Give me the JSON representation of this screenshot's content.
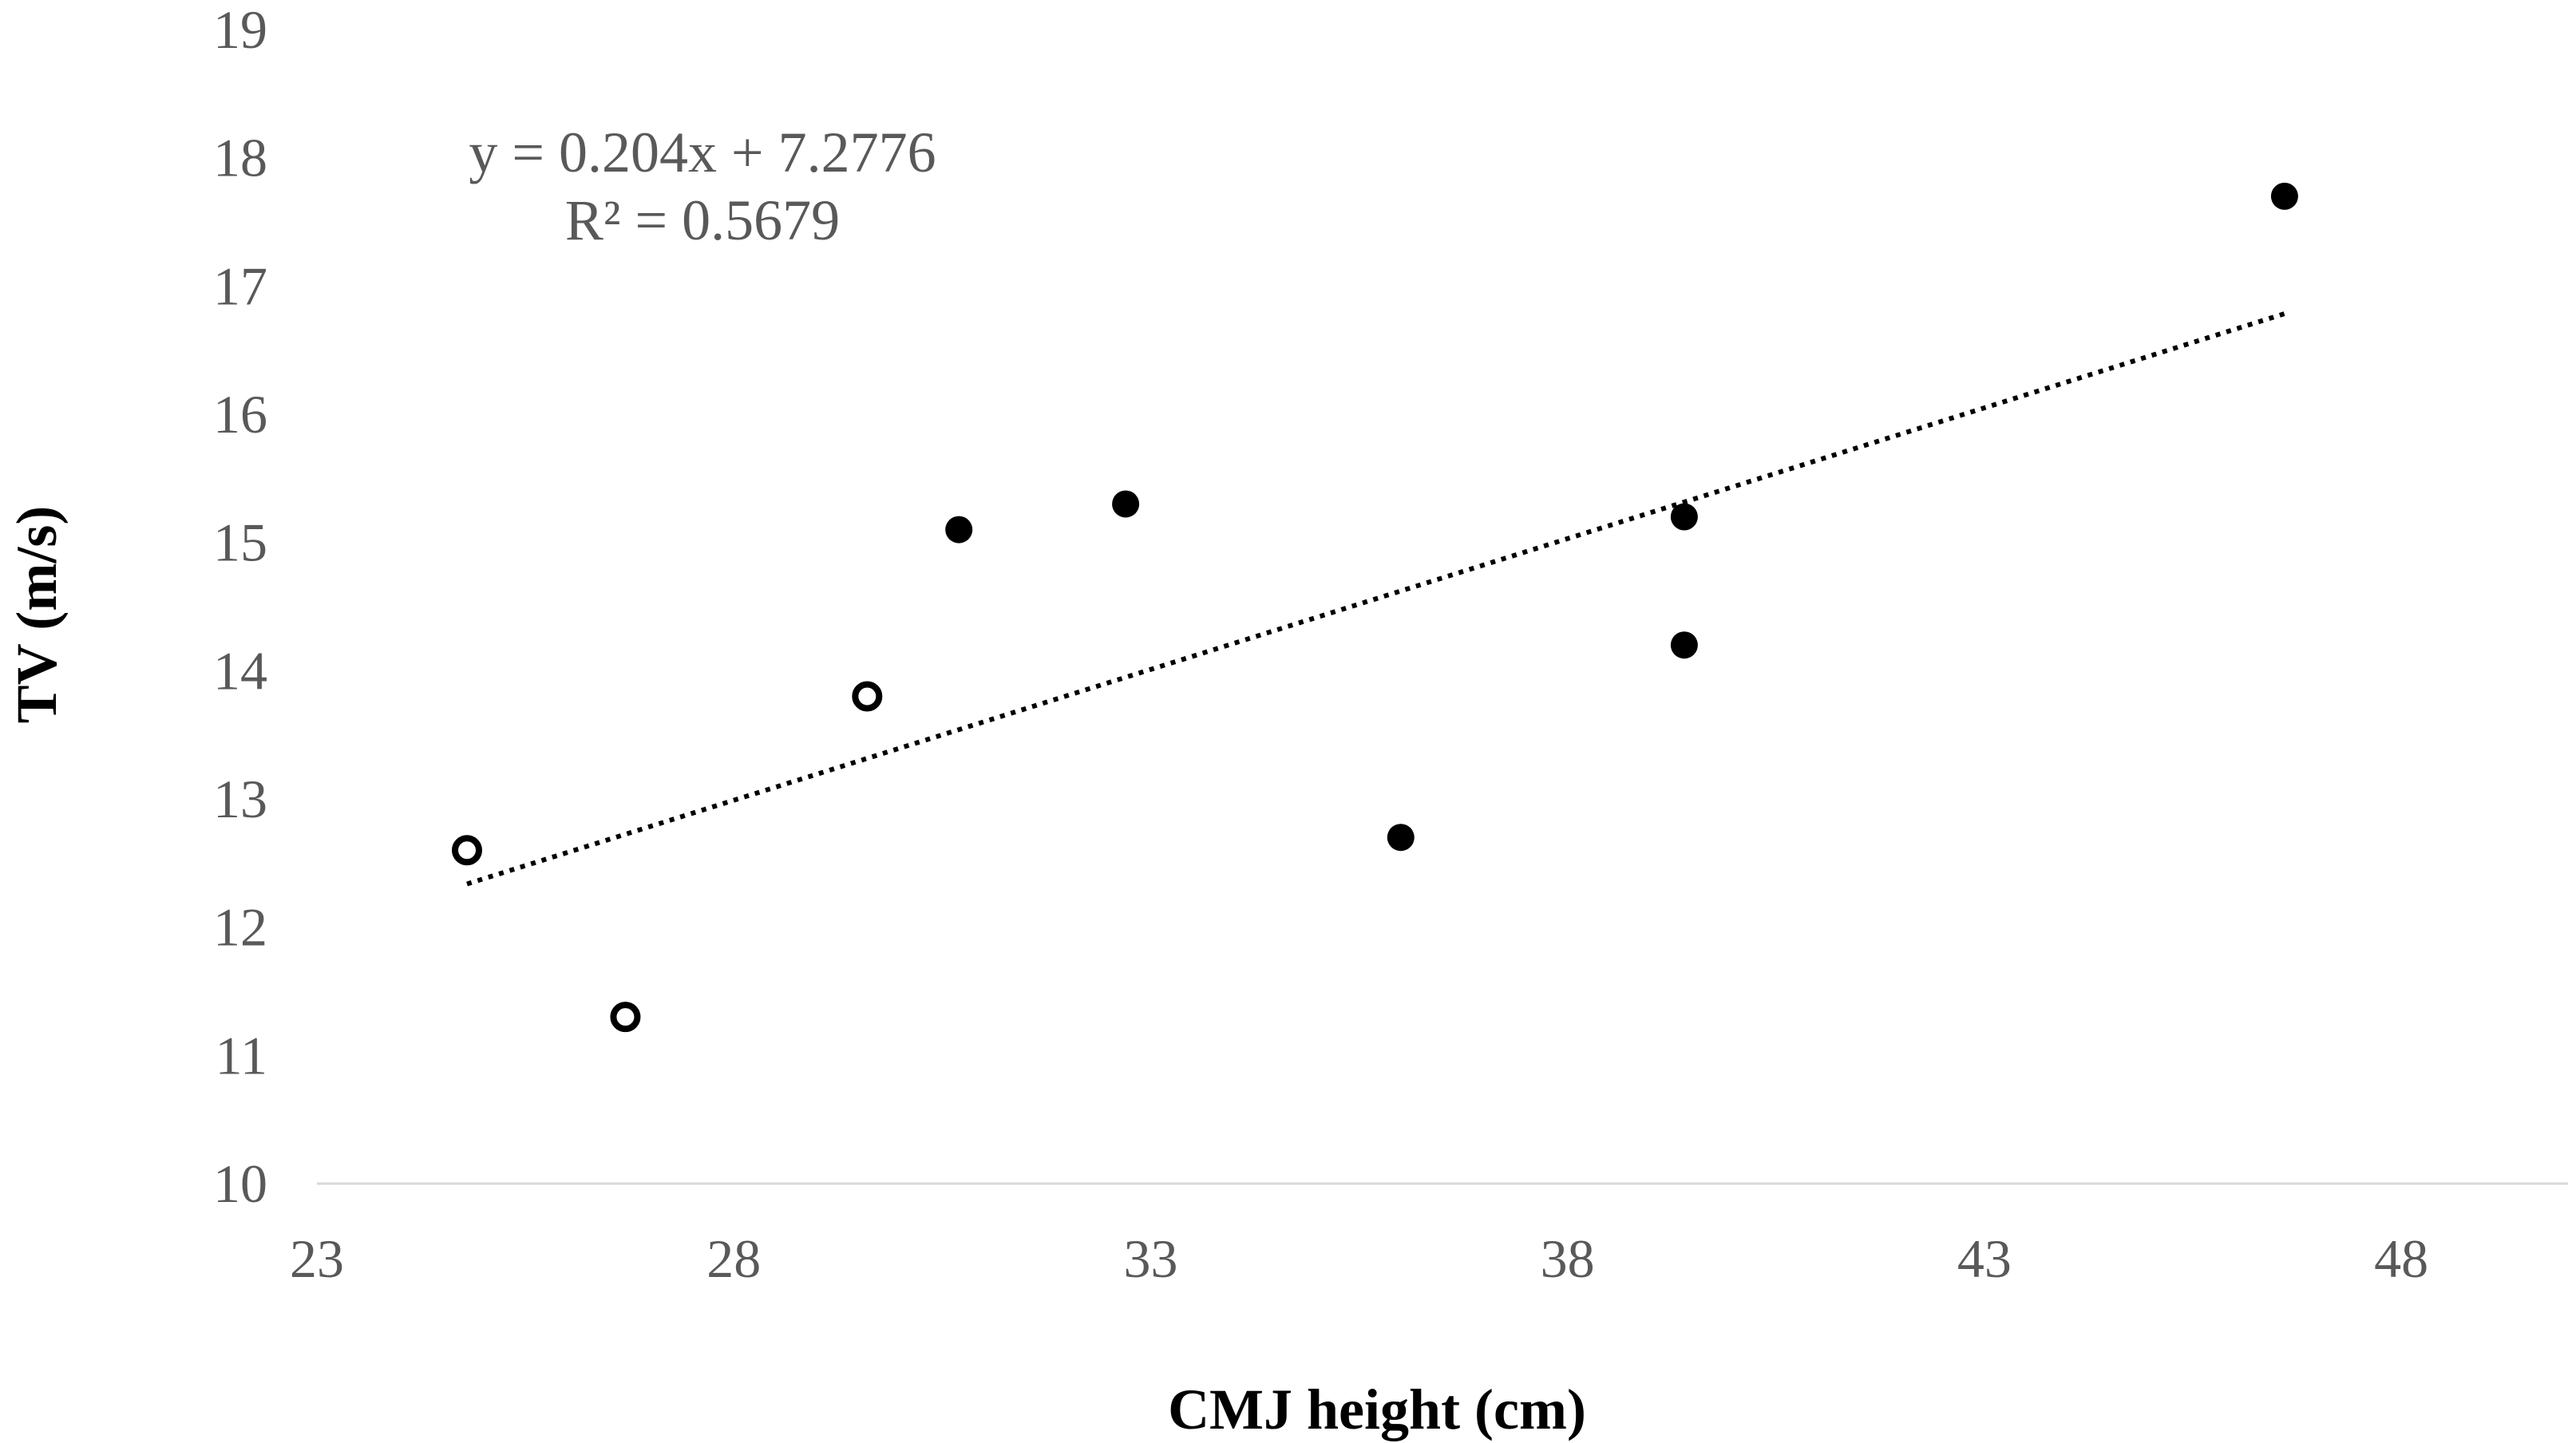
{
  "chart_data": {
    "type": "scatter",
    "title": "",
    "xlabel": "CMJ height (cm)",
    "ylabel": "TV (m/s)",
    "xlim": [
      23,
      50
    ],
    "ylim": [
      10,
      19
    ],
    "xticks": [
      "23",
      "28",
      "33",
      "38",
      "43",
      "48"
    ],
    "yticks": [
      "10",
      "11",
      "12",
      "13",
      "14",
      "15",
      "16",
      "17",
      "18",
      "19"
    ],
    "grid": false,
    "series": [
      {
        "name": "open markers",
        "marker": "open-circle",
        "points": [
          {
            "x": 24.8,
            "y": 12.6
          },
          {
            "x": 26.7,
            "y": 11.3
          },
          {
            "x": 29.6,
            "y": 13.8
          }
        ]
      },
      {
        "name": "filled markers",
        "marker": "filled-circle",
        "points": [
          {
            "x": 30.7,
            "y": 15.1
          },
          {
            "x": 32.7,
            "y": 15.3
          },
          {
            "x": 36.0,
            "y": 12.7
          },
          {
            "x": 39.4,
            "y": 15.2
          },
          {
            "x": 39.4,
            "y": 14.2
          },
          {
            "x": 46.6,
            "y": 17.7
          }
        ]
      }
    ],
    "trendline": {
      "style": "dotted",
      "slope": 0.204,
      "intercept": 7.2776,
      "x_start": 24.8,
      "x_end": 46.6,
      "equation_label": "y = 0.204x + 7.2776",
      "r2_label": "R² = 0.5679"
    },
    "colors": {
      "axis": "#d9d9d9",
      "tick_text": "#595959",
      "marker": "#000000",
      "trendline": "#000000"
    }
  }
}
